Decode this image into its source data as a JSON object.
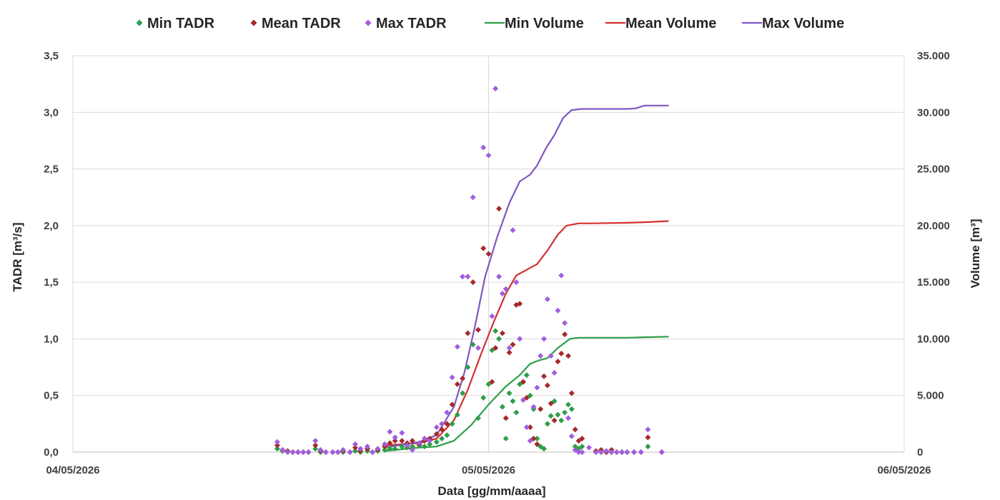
{
  "chart_data": {
    "type": "scatter",
    "x_axis": {
      "label": "Data [gg/mm/aaaa]",
      "tick_labels": [
        "04/05/2026",
        "05/05/2026",
        "06/05/2026"
      ],
      "range_hours": [
        0,
        48
      ]
    },
    "y_left": {
      "label": "TADR [m³/s]",
      "range": [
        0,
        3.5
      ],
      "tick_labels": [
        "0,0",
        "0,5",
        "1,0",
        "1,5",
        "2,0",
        "2,5",
        "3,0",
        "3,5"
      ]
    },
    "y_right": {
      "label": "Volume [m³]",
      "range": [
        0,
        35000
      ],
      "tick_labels": [
        "0",
        "5.000",
        "10.000",
        "15.000",
        "20.000",
        "25.000",
        "30.000",
        "35.000"
      ]
    },
    "grid": true,
    "legend_position": "top",
    "series": [
      {
        "name": "Min TADR",
        "kind": "scatter",
        "axis": "left",
        "color": "#2e9e48",
        "points": [
          [
            11.8,
            0.03
          ],
          [
            12.1,
            0.01
          ],
          [
            12.4,
            0.0
          ],
          [
            12.7,
            0.0
          ],
          [
            13.0,
            0.0
          ],
          [
            13.3,
            0.0
          ],
          [
            13.6,
            0.0
          ],
          [
            14.0,
            0.03
          ],
          [
            14.3,
            0.0
          ],
          [
            14.6,
            0.0
          ],
          [
            15.0,
            0.0
          ],
          [
            15.3,
            0.0
          ],
          [
            15.6,
            0.0
          ],
          [
            16.0,
            0.0
          ],
          [
            16.3,
            0.01
          ],
          [
            16.6,
            0.0
          ],
          [
            17.0,
            0.01
          ],
          [
            17.3,
            0.0
          ],
          [
            17.6,
            0.01
          ],
          [
            18.0,
            0.02
          ],
          [
            18.3,
            0.03
          ],
          [
            18.6,
            0.03
          ],
          [
            19.0,
            0.05
          ],
          [
            19.3,
            0.04
          ],
          [
            19.6,
            0.05
          ],
          [
            20.0,
            0.06
          ],
          [
            20.3,
            0.05
          ],
          [
            20.6,
            0.07
          ],
          [
            21.0,
            0.09
          ],
          [
            21.3,
            0.12
          ],
          [
            21.6,
            0.15
          ],
          [
            21.9,
            0.25
          ],
          [
            22.2,
            0.33
          ],
          [
            22.5,
            0.52
          ],
          [
            22.8,
            0.75
          ],
          [
            23.1,
            0.95
          ],
          [
            23.4,
            0.3
          ],
          [
            23.7,
            0.48
          ],
          [
            24.0,
            0.6
          ],
          [
            24.2,
            0.9
          ],
          [
            24.4,
            1.07
          ],
          [
            24.6,
            1.0
          ],
          [
            24.8,
            0.4
          ],
          [
            25.0,
            0.12
          ],
          [
            25.2,
            0.52
          ],
          [
            25.4,
            0.45
          ],
          [
            25.6,
            0.35
          ],
          [
            25.8,
            0.6
          ],
          [
            26.0,
            0.62
          ],
          [
            26.2,
            0.68
          ],
          [
            26.4,
            0.5
          ],
          [
            26.6,
            0.38
          ],
          [
            26.8,
            0.12
          ],
          [
            27.0,
            0.05
          ],
          [
            27.2,
            0.03
          ],
          [
            27.4,
            0.25
          ],
          [
            27.6,
            0.32
          ],
          [
            27.8,
            0.45
          ],
          [
            28.0,
            0.33
          ],
          [
            28.2,
            0.28
          ],
          [
            28.4,
            0.35
          ],
          [
            28.6,
            0.42
          ],
          [
            28.8,
            0.38
          ],
          [
            29.0,
            0.05
          ],
          [
            29.2,
            0.03
          ],
          [
            29.4,
            0.05
          ],
          [
            30.2,
            0.0
          ],
          [
            30.5,
            0.0
          ],
          [
            30.8,
            0.0
          ],
          [
            31.1,
            0.0
          ],
          [
            31.4,
            0.0
          ],
          [
            31.7,
            0.0
          ],
          [
            32.0,
            0.0
          ],
          [
            32.4,
            0.0
          ],
          [
            32.8,
            0.0
          ],
          [
            33.2,
            0.05
          ],
          [
            34.0,
            0.0
          ]
        ]
      },
      {
        "name": "Mean TADR",
        "kind": "scatter",
        "axis": "left",
        "color": "#a52a2a",
        "points": [
          [
            11.8,
            0.06
          ],
          [
            12.1,
            0.02
          ],
          [
            12.4,
            0.01
          ],
          [
            12.7,
            0.0
          ],
          [
            13.0,
            0.0
          ],
          [
            13.3,
            0.0
          ],
          [
            13.6,
            0.0
          ],
          [
            14.0,
            0.06
          ],
          [
            14.3,
            0.01
          ],
          [
            14.6,
            0.0
          ],
          [
            15.0,
            0.0
          ],
          [
            15.3,
            0.0
          ],
          [
            15.6,
            0.01
          ],
          [
            16.0,
            0.0
          ],
          [
            16.3,
            0.04
          ],
          [
            16.6,
            0.01
          ],
          [
            17.0,
            0.03
          ],
          [
            17.3,
            0.0
          ],
          [
            17.6,
            0.02
          ],
          [
            18.0,
            0.05
          ],
          [
            18.3,
            0.08
          ],
          [
            18.6,
            0.1
          ],
          [
            19.0,
            0.1
          ],
          [
            19.3,
            0.08
          ],
          [
            19.6,
            0.1
          ],
          [
            20.0,
            0.07
          ],
          [
            20.3,
            0.1
          ],
          [
            20.6,
            0.12
          ],
          [
            21.0,
            0.16
          ],
          [
            21.3,
            0.2
          ],
          [
            21.6,
            0.25
          ],
          [
            21.9,
            0.42
          ],
          [
            22.2,
            0.6
          ],
          [
            22.5,
            0.65
          ],
          [
            22.8,
            1.05
          ],
          [
            23.1,
            1.5
          ],
          [
            23.4,
            1.08
          ],
          [
            23.7,
            1.8
          ],
          [
            24.0,
            1.75
          ],
          [
            24.2,
            0.62
          ],
          [
            24.4,
            0.92
          ],
          [
            24.6,
            2.15
          ],
          [
            24.8,
            1.05
          ],
          [
            25.0,
            0.3
          ],
          [
            25.2,
            0.88
          ],
          [
            25.4,
            0.95
          ],
          [
            25.6,
            1.3
          ],
          [
            25.8,
            1.31
          ],
          [
            26.0,
            0.62
          ],
          [
            26.2,
            0.48
          ],
          [
            26.4,
            0.22
          ],
          [
            26.6,
            0.12
          ],
          [
            26.8,
            0.07
          ],
          [
            27.0,
            0.38
          ],
          [
            27.2,
            0.67
          ],
          [
            27.4,
            0.59
          ],
          [
            27.6,
            0.43
          ],
          [
            27.8,
            0.28
          ],
          [
            28.0,
            0.8
          ],
          [
            28.2,
            0.87
          ],
          [
            28.4,
            1.04
          ],
          [
            28.6,
            0.85
          ],
          [
            28.8,
            0.52
          ],
          [
            29.0,
            0.2
          ],
          [
            29.2,
            0.1
          ],
          [
            29.4,
            0.12
          ],
          [
            30.2,
            0.01
          ],
          [
            30.5,
            0.02
          ],
          [
            30.8,
            0.0
          ],
          [
            31.1,
            0.02
          ],
          [
            31.4,
            0.0
          ],
          [
            31.7,
            0.0
          ],
          [
            32.0,
            0.0
          ],
          [
            32.4,
            0.0
          ],
          [
            32.8,
            0.0
          ],
          [
            33.2,
            0.13
          ],
          [
            34.0,
            0.0
          ]
        ]
      },
      {
        "name": "Max TADR",
        "kind": "scatter",
        "axis": "left",
        "color": "#a25de0",
        "points": [
          [
            11.8,
            0.09
          ],
          [
            12.1,
            0.02
          ],
          [
            12.4,
            0.0
          ],
          [
            12.7,
            0.0
          ],
          [
            13.0,
            0.0
          ],
          [
            13.3,
            0.0
          ],
          [
            13.6,
            0.0
          ],
          [
            14.0,
            0.1
          ],
          [
            14.3,
            0.02
          ],
          [
            14.6,
            0.0
          ],
          [
            15.0,
            0.0
          ],
          [
            15.3,
            0.0
          ],
          [
            15.6,
            0.02
          ],
          [
            16.0,
            0.0
          ],
          [
            16.3,
            0.07
          ],
          [
            16.6,
            0.03
          ],
          [
            17.0,
            0.05
          ],
          [
            17.3,
            0.0
          ],
          [
            17.6,
            0.03
          ],
          [
            18.0,
            0.07
          ],
          [
            18.3,
            0.18
          ],
          [
            18.6,
            0.13
          ],
          [
            19.0,
            0.17
          ],
          [
            19.3,
            0.06
          ],
          [
            19.6,
            0.02
          ],
          [
            20.0,
            0.08
          ],
          [
            20.3,
            0.12
          ],
          [
            20.6,
            0.1
          ],
          [
            21.0,
            0.22
          ],
          [
            21.3,
            0.25
          ],
          [
            21.6,
            0.35
          ],
          [
            21.9,
            0.66
          ],
          [
            22.2,
            0.93
          ],
          [
            22.5,
            1.55
          ],
          [
            22.8,
            1.55
          ],
          [
            23.1,
            2.25
          ],
          [
            23.4,
            0.92
          ],
          [
            23.7,
            2.69
          ],
          [
            24.0,
            2.62
          ],
          [
            24.2,
            1.2
          ],
          [
            24.4,
            3.21
          ],
          [
            24.6,
            1.55
          ],
          [
            24.8,
            1.4
          ],
          [
            25.0,
            1.44
          ],
          [
            25.2,
            0.92
          ],
          [
            25.4,
            1.96
          ],
          [
            25.6,
            1.5
          ],
          [
            25.8,
            1.0
          ],
          [
            26.0,
            0.46
          ],
          [
            26.2,
            0.22
          ],
          [
            26.4,
            0.1
          ],
          [
            26.6,
            0.4
          ],
          [
            26.8,
            0.57
          ],
          [
            27.0,
            0.85
          ],
          [
            27.2,
            1.0
          ],
          [
            27.4,
            1.35
          ],
          [
            27.6,
            0.85
          ],
          [
            27.8,
            0.7
          ],
          [
            28.0,
            1.25
          ],
          [
            28.2,
            1.56
          ],
          [
            28.4,
            1.14
          ],
          [
            28.6,
            0.3
          ],
          [
            28.8,
            0.14
          ],
          [
            29.0,
            0.02
          ],
          [
            29.2,
            0.0
          ],
          [
            29.4,
            0.0
          ],
          [
            29.8,
            0.04
          ],
          [
            30.2,
            0.0
          ],
          [
            30.5,
            0.0
          ],
          [
            30.8,
            0.01
          ],
          [
            31.1,
            0.0
          ],
          [
            31.4,
            0.0
          ],
          [
            31.7,
            0.0
          ],
          [
            32.0,
            0.0
          ],
          [
            32.4,
            0.0
          ],
          [
            32.8,
            0.0
          ],
          [
            33.2,
            0.2
          ],
          [
            34.0,
            0.0
          ]
        ]
      },
      {
        "name": "Min Volume",
        "kind": "line",
        "axis": "right",
        "color": "#2e9e48",
        "points": [
          [
            18,
            100
          ],
          [
            20,
            400
          ],
          [
            21,
            500
          ],
          [
            22,
            1000
          ],
          [
            23,
            2400
          ],
          [
            24,
            4200
          ],
          [
            25,
            5800
          ],
          [
            25.8,
            6800
          ],
          [
            26.4,
            7800
          ],
          [
            26.9,
            8100
          ],
          [
            27.4,
            8300
          ],
          [
            28.0,
            9200
          ],
          [
            28.7,
            10000
          ],
          [
            29.2,
            10100
          ],
          [
            30,
            10100
          ],
          [
            32,
            10100
          ],
          [
            33,
            10150
          ],
          [
            34.4,
            10200
          ]
        ]
      },
      {
        "name": "Mean Volume",
        "kind": "line",
        "axis": "right",
        "color": "#d32f2f",
        "points": [
          [
            18,
            600
          ],
          [
            20,
            800
          ],
          [
            21,
            1200
          ],
          [
            22,
            2800
          ],
          [
            22.8,
            5500
          ],
          [
            23.6,
            8800
          ],
          [
            24.3,
            11500
          ],
          [
            25.0,
            14000
          ],
          [
            25.6,
            15600
          ],
          [
            26.2,
            16100
          ],
          [
            26.8,
            16600
          ],
          [
            27.4,
            17800
          ],
          [
            28.0,
            19200
          ],
          [
            28.5,
            20000
          ],
          [
            29.2,
            20200
          ],
          [
            30,
            20200
          ],
          [
            32,
            20250
          ],
          [
            33,
            20300
          ],
          [
            34.4,
            20400
          ]
        ]
      },
      {
        "name": "Max Volume",
        "kind": "line",
        "axis": "right",
        "color": "#7e57c2",
        "points": [
          [
            18,
            400
          ],
          [
            20,
            900
          ],
          [
            21,
            1500
          ],
          [
            22,
            4000
          ],
          [
            22.6,
            7000
          ],
          [
            23.2,
            11000
          ],
          [
            23.8,
            15500
          ],
          [
            24.5,
            19000
          ],
          [
            25.2,
            22000
          ],
          [
            25.8,
            23900
          ],
          [
            26.4,
            24500
          ],
          [
            26.8,
            25300
          ],
          [
            27.3,
            26800
          ],
          [
            27.8,
            28000
          ],
          [
            28.3,
            29500
          ],
          [
            28.8,
            30200
          ],
          [
            29.4,
            30300
          ],
          [
            30.5,
            30300
          ],
          [
            32,
            30300
          ],
          [
            32.5,
            30350
          ],
          [
            33,
            30600
          ],
          [
            34.4,
            30600
          ]
        ]
      }
    ]
  }
}
